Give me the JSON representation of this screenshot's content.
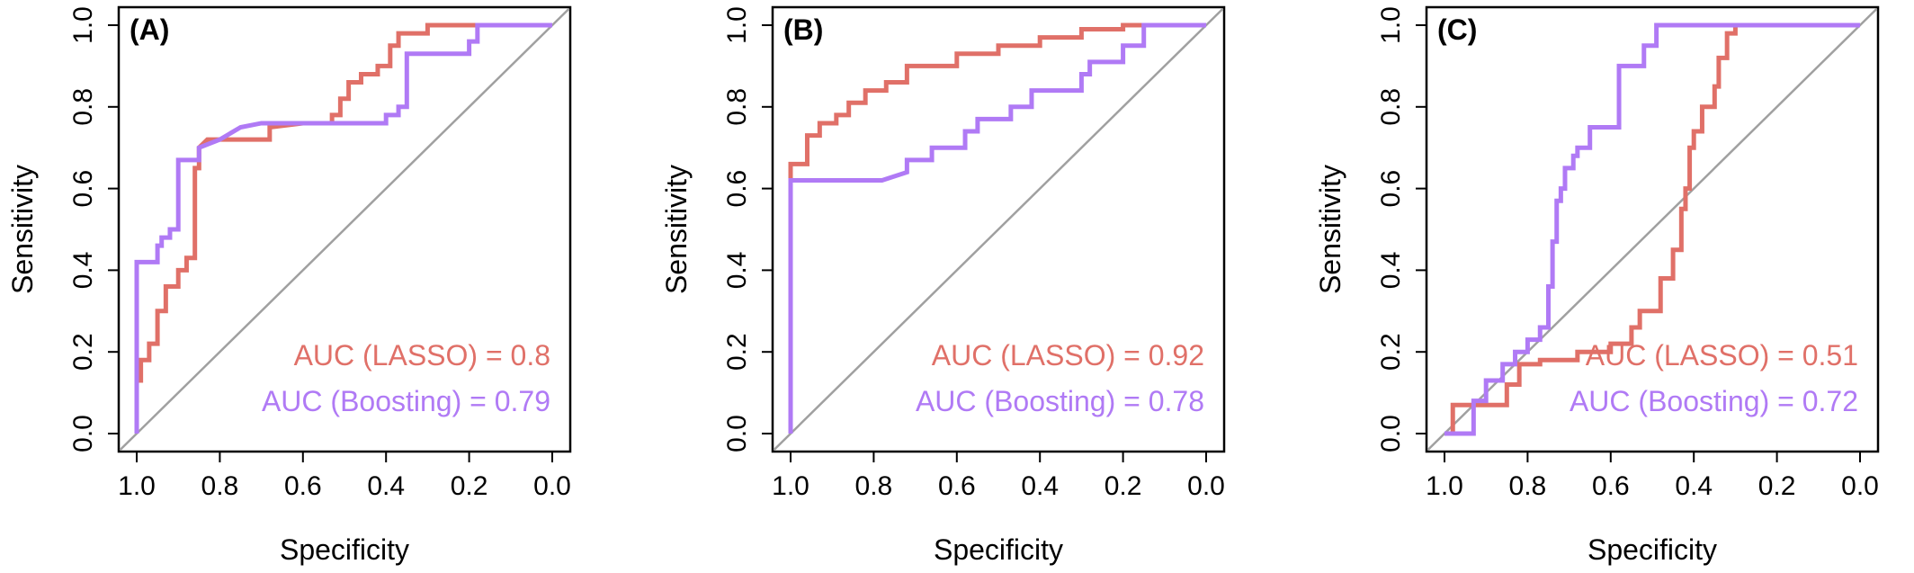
{
  "colors": {
    "lasso": "#e07068",
    "boosting": "#b07af5",
    "diagonal": "#a0a0a0",
    "frame": "#000000"
  },
  "chart_data": [
    {
      "type": "line",
      "panel_label": "(A)",
      "xlabel": "Specificity",
      "ylabel": "Sensitivity",
      "xlim": [
        1.0,
        0.0
      ],
      "ylim": [
        0.0,
        1.0
      ],
      "x_reversed": true,
      "xticks": [
        "1.0",
        "0.8",
        "0.6",
        "0.4",
        "0.2",
        "0.0"
      ],
      "yticks": [
        "0.0",
        "0.2",
        "0.4",
        "0.6",
        "0.8",
        "1.0"
      ],
      "reference_line": "diagonal",
      "legend_position": "bottom-right",
      "annotations": [
        "AUC (LASSO) = 0.8",
        "AUC (Boosting) = 0.79"
      ],
      "series": [
        {
          "name": "LASSO",
          "color_key": "lasso",
          "auc": 0.8,
          "x": [
            1.0,
            1.0,
            0.99,
            0.99,
            0.97,
            0.97,
            0.95,
            0.95,
            0.93,
            0.93,
            0.9,
            0.9,
            0.88,
            0.88,
            0.86,
            0.86,
            0.85,
            0.85,
            0.83,
            0.8,
            0.75,
            0.7,
            0.68,
            0.68,
            0.6,
            0.55,
            0.53,
            0.53,
            0.51,
            0.51,
            0.49,
            0.49,
            0.46,
            0.46,
            0.42,
            0.42,
            0.39,
            0.39,
            0.37,
            0.37,
            0.3,
            0.3,
            0.0
          ],
          "y": [
            0.0,
            0.13,
            0.13,
            0.18,
            0.18,
            0.22,
            0.22,
            0.3,
            0.3,
            0.36,
            0.36,
            0.4,
            0.4,
            0.43,
            0.43,
            0.65,
            0.65,
            0.7,
            0.72,
            0.72,
            0.72,
            0.72,
            0.72,
            0.75,
            0.76,
            0.76,
            0.76,
            0.78,
            0.78,
            0.82,
            0.82,
            0.86,
            0.86,
            0.88,
            0.88,
            0.9,
            0.9,
            0.95,
            0.95,
            0.98,
            0.98,
            1.0,
            1.0
          ]
        },
        {
          "name": "Boosting",
          "color_key": "boosting",
          "auc": 0.79,
          "x": [
            1.0,
            1.0,
            0.95,
            0.95,
            0.94,
            0.94,
            0.92,
            0.92,
            0.9,
            0.9,
            0.85,
            0.85,
            0.8,
            0.75,
            0.7,
            0.4,
            0.4,
            0.37,
            0.37,
            0.35,
            0.35,
            0.3,
            0.2,
            0.2,
            0.18,
            0.18,
            0.0
          ],
          "y": [
            0.0,
            0.42,
            0.42,
            0.46,
            0.46,
            0.48,
            0.48,
            0.5,
            0.5,
            0.67,
            0.67,
            0.7,
            0.72,
            0.75,
            0.76,
            0.76,
            0.78,
            0.78,
            0.8,
            0.8,
            0.93,
            0.93,
            0.93,
            0.96,
            0.96,
            1.0,
            1.0
          ]
        }
      ]
    },
    {
      "type": "line",
      "panel_label": "(B)",
      "xlabel": "Specificity",
      "ylabel": "Sensitivity",
      "xlim": [
        1.0,
        0.0
      ],
      "ylim": [
        0.0,
        1.0
      ],
      "x_reversed": true,
      "xticks": [
        "1.0",
        "0.8",
        "0.6",
        "0.4",
        "0.2",
        "0.0"
      ],
      "yticks": [
        "0.0",
        "0.2",
        "0.4",
        "0.6",
        "0.8",
        "1.0"
      ],
      "reference_line": "diagonal",
      "legend_position": "bottom-right",
      "annotations": [
        "AUC (LASSO) = 0.92",
        "AUC (Boosting) = 0.78"
      ],
      "series": [
        {
          "name": "LASSO",
          "color_key": "lasso",
          "auc": 0.92,
          "x": [
            1.0,
            1.0,
            0.96,
            0.96,
            0.93,
            0.93,
            0.89,
            0.89,
            0.86,
            0.86,
            0.82,
            0.82,
            0.77,
            0.77,
            0.72,
            0.72,
            0.6,
            0.6,
            0.5,
            0.5,
            0.4,
            0.4,
            0.3,
            0.3,
            0.2,
            0.2,
            0.0
          ],
          "y": [
            0.0,
            0.66,
            0.66,
            0.73,
            0.73,
            0.76,
            0.76,
            0.78,
            0.78,
            0.81,
            0.81,
            0.84,
            0.84,
            0.86,
            0.86,
            0.9,
            0.9,
            0.93,
            0.93,
            0.95,
            0.95,
            0.97,
            0.97,
            0.99,
            0.99,
            1.0,
            1.0
          ]
        },
        {
          "name": "Boosting",
          "color_key": "boosting",
          "auc": 0.78,
          "x": [
            1.0,
            1.0,
            0.78,
            0.72,
            0.72,
            0.66,
            0.66,
            0.58,
            0.58,
            0.55,
            0.55,
            0.47,
            0.47,
            0.42,
            0.42,
            0.3,
            0.3,
            0.28,
            0.28,
            0.2,
            0.2,
            0.15,
            0.15,
            0.0
          ],
          "y": [
            0.0,
            0.62,
            0.62,
            0.64,
            0.67,
            0.67,
            0.7,
            0.7,
            0.74,
            0.74,
            0.77,
            0.77,
            0.8,
            0.8,
            0.84,
            0.84,
            0.88,
            0.88,
            0.91,
            0.91,
            0.95,
            0.95,
            1.0,
            1.0
          ]
        }
      ]
    },
    {
      "type": "line",
      "panel_label": "(C)",
      "xlabel": "Specificity",
      "ylabel": "Sensitivity",
      "xlim": [
        1.0,
        0.0
      ],
      "ylim": [
        0.0,
        1.0
      ],
      "x_reversed": true,
      "xticks": [
        "1.0",
        "0.8",
        "0.6",
        "0.4",
        "0.2",
        "0.0"
      ],
      "yticks": [
        "0.0",
        "0.2",
        "0.4",
        "0.6",
        "0.8",
        "1.0"
      ],
      "reference_line": "diagonal",
      "legend_position": "bottom-right",
      "annotations": [
        "AUC (LASSO) = 0.51",
        "AUC (Boosting) = 0.72"
      ],
      "series": [
        {
          "name": "LASSO",
          "color_key": "lasso",
          "auc": 0.51,
          "x": [
            1.0,
            0.98,
            0.98,
            0.85,
            0.85,
            0.82,
            0.82,
            0.77,
            0.77,
            0.68,
            0.68,
            0.6,
            0.6,
            0.55,
            0.55,
            0.53,
            0.53,
            0.48,
            0.48,
            0.45,
            0.45,
            0.43,
            0.43,
            0.42,
            0.42,
            0.41,
            0.41,
            0.4,
            0.4,
            0.38,
            0.38,
            0.35,
            0.35,
            0.34,
            0.34,
            0.32,
            0.32,
            0.3,
            0.3,
            0.0
          ],
          "y": [
            0.0,
            0.0,
            0.07,
            0.07,
            0.12,
            0.12,
            0.17,
            0.17,
            0.18,
            0.18,
            0.2,
            0.2,
            0.22,
            0.22,
            0.26,
            0.26,
            0.3,
            0.3,
            0.38,
            0.38,
            0.45,
            0.45,
            0.55,
            0.55,
            0.6,
            0.6,
            0.7,
            0.7,
            0.74,
            0.74,
            0.8,
            0.8,
            0.85,
            0.85,
            0.92,
            0.92,
            0.98,
            0.98,
            1.0,
            1.0
          ]
        },
        {
          "name": "Boosting",
          "color_key": "boosting",
          "auc": 0.72,
          "x": [
            1.0,
            0.93,
            0.93,
            0.9,
            0.9,
            0.86,
            0.86,
            0.83,
            0.83,
            0.8,
            0.8,
            0.77,
            0.77,
            0.75,
            0.75,
            0.74,
            0.74,
            0.73,
            0.73,
            0.72,
            0.72,
            0.71,
            0.71,
            0.69,
            0.69,
            0.68,
            0.68,
            0.65,
            0.65,
            0.58,
            0.58,
            0.52,
            0.52,
            0.49,
            0.49,
            0.0
          ],
          "y": [
            0.0,
            0.0,
            0.08,
            0.08,
            0.13,
            0.13,
            0.17,
            0.17,
            0.2,
            0.2,
            0.23,
            0.23,
            0.26,
            0.26,
            0.36,
            0.36,
            0.47,
            0.47,
            0.57,
            0.57,
            0.6,
            0.6,
            0.65,
            0.65,
            0.68,
            0.68,
            0.7,
            0.7,
            0.75,
            0.75,
            0.9,
            0.9,
            0.95,
            0.95,
            1.0,
            1.0
          ]
        }
      ]
    }
  ]
}
